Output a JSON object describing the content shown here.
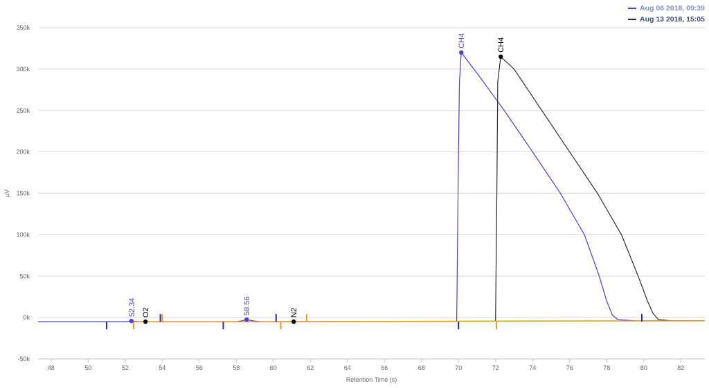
{
  "legend": [
    {
      "label": "Aug 08 2018, 09:39",
      "color": "#4a3fd6",
      "text_color": "#7f8fc8"
    },
    {
      "label": "Aug 13 2018, 15:05",
      "color": "#2b2b2b",
      "text_color": "#3d4f7a"
    }
  ],
  "chart_data": {
    "type": "line",
    "xlabel": "Retention Time (s)",
    "ylabel": "µV",
    "xlim": [
      47.3,
      83.3
    ],
    "ylim": [
      -50000,
      350000
    ],
    "x_ticks": [
      48,
      50,
      52,
      54,
      56,
      58,
      60,
      62,
      64,
      66,
      68,
      70,
      72,
      74,
      76,
      78,
      80,
      82
    ],
    "y_ticks": [
      {
        "value": -50000,
        "label": "-50k"
      },
      {
        "value": 0,
        "label": "0k"
      },
      {
        "value": 50000,
        "label": "50k"
      },
      {
        "value": 100000,
        "label": "100k"
      },
      {
        "value": 150000,
        "label": "150k"
      },
      {
        "value": 200000,
        "label": "200k"
      },
      {
        "value": 250000,
        "label": "250k"
      },
      {
        "value": 300000,
        "label": "300k"
      },
      {
        "value": 350000,
        "label": "350k"
      }
    ],
    "grid": true,
    "legend_position": "top-right",
    "series": [
      {
        "name": "Aug 08 2018, 09:39",
        "color": "#4a3fd6",
        "points": [
          [
            47.3,
            -5000
          ],
          [
            52.0,
            -5000
          ],
          [
            52.34,
            -4200
          ],
          [
            52.8,
            -5000
          ],
          [
            58.0,
            -5000
          ],
          [
            58.3,
            -4000
          ],
          [
            58.56,
            -2500
          ],
          [
            58.9,
            -4000
          ],
          [
            59.3,
            -5000
          ],
          [
            69.9,
            -4500
          ],
          [
            70.0,
            200000
          ],
          [
            70.05,
            285000
          ],
          [
            70.15,
            320000
          ],
          [
            71.0,
            295000
          ],
          [
            72.5,
            249000
          ],
          [
            74.0,
            200000
          ],
          [
            75.5,
            150000
          ],
          [
            76.8,
            100000
          ],
          [
            77.6,
            50000
          ],
          [
            78.0,
            20000
          ],
          [
            78.3,
            3000
          ],
          [
            78.6,
            -2500
          ],
          [
            79.5,
            -4000
          ],
          [
            80.5,
            -4000
          ],
          [
            83.3,
            -4000
          ]
        ]
      },
      {
        "name": "Aug 13 2018, 15:05",
        "color": "#2b2b2b",
        "points": [
          [
            72.0,
            -4500
          ],
          [
            72.07,
            150000
          ],
          [
            72.12,
            285000
          ],
          [
            72.28,
            315000
          ],
          [
            73.0,
            300000
          ],
          [
            74.5,
            250000
          ],
          [
            76.0,
            200000
          ],
          [
            77.5,
            150000
          ],
          [
            78.8,
            100000
          ],
          [
            79.7,
            50000
          ],
          [
            80.2,
            20000
          ],
          [
            80.5,
            5000
          ],
          [
            80.8,
            -2500
          ],
          [
            81.5,
            -4000
          ],
          [
            83.3,
            -4000
          ]
        ]
      },
      {
        "name": "",
        "color": "#e49b1c",
        "points": [
          [
            52.45,
            -5000
          ],
          [
            53.9,
            -5000
          ],
          [
            60.4,
            -5000
          ],
          [
            61.8,
            -5000
          ],
          [
            72.05,
            -4200
          ],
          [
            83.3,
            -4000
          ]
        ]
      }
    ],
    "peaks": [
      {
        "x": 52.34,
        "y": -4200,
        "label": "52.34",
        "color": "#4a3fd6"
      },
      {
        "x": 53.1,
        "y": -5000,
        "label": "O2",
        "color": "#000000"
      },
      {
        "x": 58.56,
        "y": -2500,
        "label": "58.56",
        "color": "#4a3fd6"
      },
      {
        "x": 61.1,
        "y": -5000,
        "label": "N2",
        "color": "#000000"
      },
      {
        "x": 70.15,
        "y": 320000,
        "label": "CH4",
        "color": "#4a3fd6"
      },
      {
        "x": 72.28,
        "y": 315000,
        "label": "CH4",
        "color": "#000000"
      }
    ],
    "integration_markers": [
      {
        "x": 51.0,
        "dir": "down",
        "color": "#2a2aa0"
      },
      {
        "x": 52.45,
        "dir": "down",
        "color": "#e49b1c"
      },
      {
        "x": 53.9,
        "dir": "up",
        "color": "#2a2aa0"
      },
      {
        "x": 54.0,
        "dir": "up",
        "color": "#e49b1c"
      },
      {
        "x": 57.3,
        "dir": "down",
        "color": "#2a2aa0"
      },
      {
        "x": 60.15,
        "dir": "up",
        "color": "#2a2aa0"
      },
      {
        "x": 60.4,
        "dir": "down",
        "color": "#e49b1c"
      },
      {
        "x": 61.8,
        "dir": "up",
        "color": "#e49b1c"
      },
      {
        "x": 70.0,
        "dir": "down",
        "color": "#2a2aa0"
      },
      {
        "x": 72.05,
        "dir": "down",
        "color": "#e49b1c"
      },
      {
        "x": 79.9,
        "dir": "up",
        "color": "#2a2aa0"
      }
    ]
  }
}
